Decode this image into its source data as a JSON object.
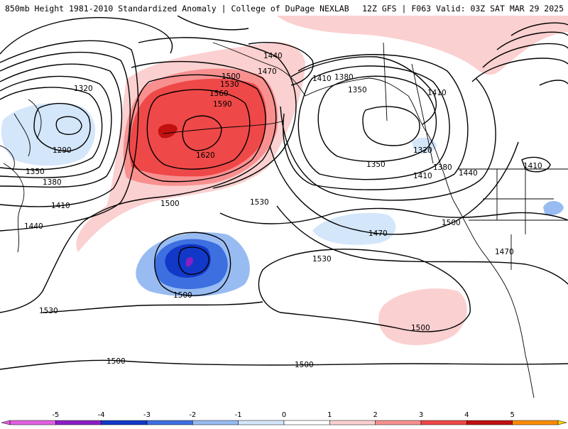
{
  "header": {
    "title_left": "850mb Height 1981-2010 Standardized Anomaly | College of DuPage NEXLAB",
    "title_right": "12Z GFS | F063 Valid: 03Z SAT MAR 29 2025"
  },
  "map": {
    "contour_labels": [
      "1320",
      "1290",
      "1350",
      "1380",
      "1410",
      "1440",
      "1500",
      "1530",
      "1560",
      "1590",
      "1620",
      "1440",
      "1470",
      "1500",
      "1530",
      "1410",
      "1380",
      "1350",
      "1320",
      "1350",
      "1410",
      "1380",
      "1440",
      "1410",
      "1410",
      "1470",
      "1500",
      "1470",
      "1530",
      "1500",
      "1530",
      "1500",
      "1500",
      "1500"
    ]
  },
  "colorbar": {
    "ticks": [
      "-5",
      "-4",
      "-3",
      "-2",
      "-1",
      "0",
      "1",
      "2",
      "3",
      "4",
      "5"
    ],
    "colors": [
      "#e060e0",
      "#8a1fc4",
      "#1238c8",
      "#3d6fe0",
      "#98bcf2",
      "#d4e6fa",
      "#ffffff",
      "#fbd0d0",
      "#f89090",
      "#ef4848",
      "#c01010",
      "#ff8c00",
      "#ffd700"
    ]
  }
}
